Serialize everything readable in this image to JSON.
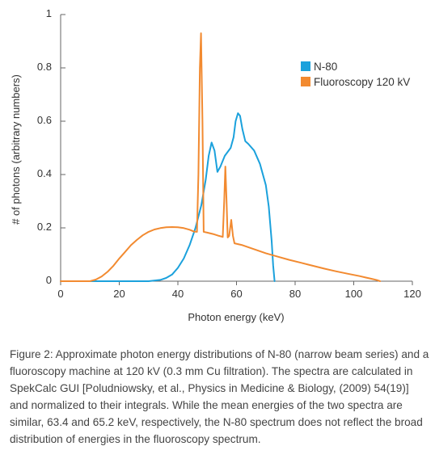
{
  "chart_data": {
    "type": "line",
    "xlabel": "Photon energy (keV)",
    "ylabel": "# of photons (arbitrary numbers)",
    "xlim": [
      0,
      120
    ],
    "ylim": [
      0,
      1
    ],
    "x_ticks": [
      "0",
      "20",
      "40",
      "60",
      "80",
      "100",
      "120"
    ],
    "y_ticks": [
      "0",
      "0.2",
      "0.4",
      "0.6",
      "0.8",
      "1"
    ],
    "grid": false,
    "legend_position": "top-right",
    "series": [
      {
        "name": "N-80",
        "color": "#1ba1dc",
        "points": [
          [
            0,
            0
          ],
          [
            10,
            0
          ],
          [
            20,
            0
          ],
          [
            30,
            0
          ],
          [
            34,
            0.005
          ],
          [
            36,
            0.012
          ],
          [
            38,
            0.025
          ],
          [
            40,
            0.05
          ],
          [
            42,
            0.085
          ],
          [
            44,
            0.135
          ],
          [
            46,
            0.2
          ],
          [
            48,
            0.285
          ],
          [
            49.5,
            0.38
          ],
          [
            50.5,
            0.47
          ],
          [
            51.5,
            0.52
          ],
          [
            52.5,
            0.49
          ],
          [
            53.5,
            0.41
          ],
          [
            54.5,
            0.43
          ],
          [
            56,
            0.47
          ],
          [
            58,
            0.5
          ],
          [
            59,
            0.54
          ],
          [
            59.7,
            0.6
          ],
          [
            60.5,
            0.63
          ],
          [
            61.2,
            0.62
          ],
          [
            62,
            0.57
          ],
          [
            63,
            0.525
          ],
          [
            64,
            0.515
          ],
          [
            66,
            0.49
          ],
          [
            68,
            0.44
          ],
          [
            70,
            0.36
          ],
          [
            71,
            0.28
          ],
          [
            72,
            0.15
          ],
          [
            72.5,
            0.06
          ],
          [
            73,
            0.0
          ]
        ]
      },
      {
        "name": "Fluoroscopy 120 kV",
        "color": "#f28a30",
        "points": [
          [
            0,
            0.0
          ],
          [
            10,
            0.0
          ],
          [
            12,
            0.006
          ],
          [
            14,
            0.018
          ],
          [
            16,
            0.035
          ],
          [
            18,
            0.058
          ],
          [
            20,
            0.085
          ],
          [
            22,
            0.11
          ],
          [
            24,
            0.135
          ],
          [
            26,
            0.155
          ],
          [
            28,
            0.172
          ],
          [
            30,
            0.185
          ],
          [
            32,
            0.194
          ],
          [
            34,
            0.199
          ],
          [
            36,
            0.202
          ],
          [
            38,
            0.203
          ],
          [
            40,
            0.202
          ],
          [
            42,
            0.199
          ],
          [
            44,
            0.193
          ],
          [
            45.5,
            0.186
          ],
          [
            46.5,
            0.185
          ],
          [
            47,
            0.4
          ],
          [
            47.5,
            0.8
          ],
          [
            47.9,
            0.93
          ],
          [
            48.4,
            0.6
          ],
          [
            48.8,
            0.185
          ],
          [
            50,
            0.182
          ],
          [
            52,
            0.177
          ],
          [
            54,
            0.17
          ],
          [
            55.3,
            0.166
          ],
          [
            55.8,
            0.3
          ],
          [
            56.2,
            0.43
          ],
          [
            56.6,
            0.3
          ],
          [
            57,
            0.164
          ],
          [
            57.5,
            0.17
          ],
          [
            58.2,
            0.23
          ],
          [
            58.8,
            0.17
          ],
          [
            59.3,
            0.142
          ],
          [
            62,
            0.135
          ],
          [
            66,
            0.12
          ],
          [
            70,
            0.105
          ],
          [
            74,
            0.092
          ],
          [
            78,
            0.08
          ],
          [
            82,
            0.069
          ],
          [
            86,
            0.058
          ],
          [
            90,
            0.047
          ],
          [
            94,
            0.037
          ],
          [
            98,
            0.028
          ],
          [
            102,
            0.019
          ],
          [
            104,
            0.014
          ],
          [
            106,
            0.009
          ],
          [
            108,
            0.004
          ],
          [
            109,
            0.0
          ]
        ]
      }
    ]
  },
  "caption": "Figure 2: Approximate photon energy distributions of N-80 (narrow beam series) and a fluoroscopy machine at 120 kV (0.3 mm Cu filtration). The spectra are calculated in SpekCalc GUI [Poludniowsky, et al., Physics in Medicine & Biology, (2009) 54(19)] and normalized to their integrals. While the mean energies of the two spectra are similar, 63.4 and 65.2 keV, respectively, the N-80 spectrum does not reflect the broad distribution of energies in the fluoroscopy spectrum."
}
